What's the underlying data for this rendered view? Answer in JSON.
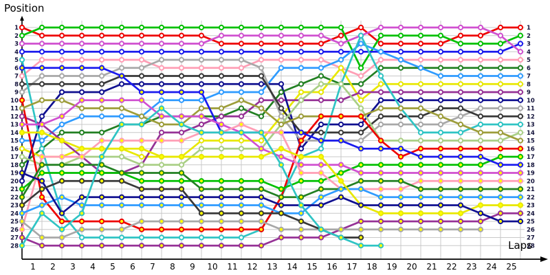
{
  "page": {
    "title": "Position",
    "xlabel": "Laps"
  },
  "chart_data": {
    "type": "line",
    "subtype": "race-lap-position-bump-chart",
    "title": "Position",
    "xlabel": "Laps",
    "grid": true,
    "x_start_lap": 0,
    "lap_ticks": [
      1,
      2,
      3,
      4,
      5,
      6,
      7,
      8,
      9,
      10,
      11,
      12,
      13,
      14,
      15,
      16,
      17,
      18,
      19,
      20,
      21,
      22,
      23,
      24,
      25
    ],
    "position_ticks": [
      1,
      2,
      3,
      4,
      5,
      6,
      7,
      8,
      9,
      10,
      11,
      12,
      13,
      14,
      15,
      16,
      17,
      18,
      19,
      20,
      21,
      22,
      23,
      24,
      25,
      26,
      27,
      28
    ],
    "ylim": [
      1,
      28
    ],
    "marker_fills": {
      "white": "#ffffff",
      "yellow": "#ffff00"
    },
    "grid_color": "#c8c8c8",
    "axis_color": "#000000",
    "label_color": "#14143c",
    "series": [
      {
        "name": "car-red-white",
        "color": "#ee0000",
        "marker": "white",
        "values": [
          1,
          2,
          2,
          2,
          2,
          2,
          2,
          2,
          2,
          2,
          3,
          3,
          3,
          3,
          3,
          3,
          2,
          1,
          3,
          3,
          3,
          3,
          2,
          2,
          1,
          1
        ]
      },
      {
        "name": "car-green-white",
        "color": "#00c000",
        "marker": "white",
        "values": [
          2,
          1,
          1,
          1,
          1,
          1,
          1,
          1,
          1,
          1,
          1,
          1,
          1,
          1,
          1,
          1,
          1,
          6,
          2,
          2,
          2,
          2,
          3,
          3,
          3,
          2
        ]
      },
      {
        "name": "car-blue-white",
        "color": "#1a1aee",
        "marker": "white",
        "values": [
          4,
          4,
          4,
          4,
          4,
          4,
          4,
          4,
          4,
          4,
          4,
          4,
          4,
          4,
          4,
          4,
          4,
          4,
          4,
          4,
          4,
          4,
          4,
          4,
          4,
          3
        ]
      },
      {
        "name": "car-violet-white",
        "color": "#d050d0",
        "marker": "white",
        "values": [
          3,
          3,
          3,
          3,
          3,
          3,
          3,
          3,
          3,
          3,
          2,
          2,
          2,
          2,
          2,
          2,
          3,
          2,
          1,
          1,
          1,
          1,
          1,
          1,
          2,
          4
        ]
      },
      {
        "name": "car-pink-white",
        "color": "#ff9eb5",
        "marker": "white",
        "values": [
          7,
          5,
          5,
          5,
          5,
          5,
          5,
          6,
          6,
          6,
          6,
          6,
          5,
          5,
          5,
          5,
          6,
          7,
          5,
          5,
          5,
          5,
          5,
          5,
          5,
          5
        ]
      },
      {
        "name": "car-darkgreen-white",
        "color": "#228022",
        "marker": "white",
        "values": [
          18,
          16,
          14,
          14,
          14,
          13,
          13,
          12,
          12,
          12,
          12,
          11,
          12,
          9,
          8,
          7,
          8,
          8,
          6,
          6,
          6,
          6,
          6,
          6,
          6,
          6
        ]
      },
      {
        "name": "car-lightblue-white",
        "color": "#2f9bff",
        "marker": "white",
        "values": [
          15,
          15,
          13,
          12,
          12,
          12,
          12,
          10,
          10,
          10,
          9,
          9,
          9,
          6,
          6,
          6,
          5,
          3,
          4,
          5,
          6,
          7,
          7,
          7,
          7,
          7
        ]
      },
      {
        "name": "car-yellow-white",
        "color": "#e8e800",
        "marker": "white",
        "values": [
          16,
          17,
          17,
          16,
          16,
          16,
          17,
          17,
          17,
          15,
          15,
          15,
          15,
          12,
          9,
          9,
          6,
          10,
          8,
          8,
          8,
          8,
          8,
          8,
          8,
          8
        ]
      },
      {
        "name": "car-purple-white",
        "color": "#963296",
        "marker": "white",
        "values": [
          12,
          13,
          15,
          17,
          19,
          19,
          18,
          14,
          14,
          13,
          12,
          12,
          10,
          10,
          10,
          10,
          10,
          9,
          9,
          9,
          9,
          9,
          9,
          9,
          9,
          9
        ]
      },
      {
        "name": "car-navy-white",
        "color": "#101090",
        "marker": "white",
        "values": [
          20,
          12,
          9,
          9,
          9,
          8,
          8,
          8,
          8,
          8,
          8,
          8,
          8,
          8,
          16,
          13,
          13,
          13,
          10,
          10,
          10,
          10,
          10,
          10,
          10,
          10
        ]
      },
      {
        "name": "car-gray-white",
        "color": "#a8a8a8",
        "marker": "white",
        "values": [
          9,
          7,
          7,
          7,
          7,
          6,
          6,
          5,
          5,
          5,
          5,
          5,
          6,
          12,
          15,
          15,
          15,
          15,
          13,
          13,
          13,
          13,
          12,
          11,
          11,
          11
        ]
      },
      {
        "name": "car-black-white",
        "color": "#383838",
        "marker": "white",
        "values": [
          8,
          8,
          8,
          8,
          8,
          7,
          7,
          7,
          7,
          7,
          7,
          7,
          7,
          11,
          14,
          14,
          14,
          14,
          12,
          12,
          12,
          11,
          11,
          12,
          12,
          12
        ]
      },
      {
        "name": "car-cyan-white",
        "color": "#2fc4c4",
        "marker": "white",
        "values": [
          5,
          16,
          24,
          27,
          27,
          27,
          27,
          27,
          27,
          27,
          27,
          27,
          26,
          22,
          17,
          16,
          8,
          2,
          7,
          11,
          14,
          14,
          14,
          13,
          13,
          13
        ]
      },
      {
        "name": "car-palegreen-white",
        "color": "#a9cf85",
        "marker": "white",
        "values": [
          17,
          18,
          18,
          17,
          17,
          17,
          18,
          18,
          18,
          16,
          16,
          16,
          16,
          13,
          10,
          8,
          8,
          11,
          15,
          15,
          15,
          15,
          15,
          15,
          15,
          14
        ]
      },
      {
        "name": "car-olive-white",
        "color": "#9d9d3a",
        "marker": "white",
        "values": [
          11,
          10,
          10,
          11,
          11,
          11,
          12,
          13,
          13,
          11,
          11,
          10,
          11,
          13,
          12,
          12,
          12,
          12,
          11,
          11,
          11,
          12,
          13,
          14,
          14,
          15
        ]
      },
      {
        "name": "car-red-yellow",
        "color": "#ee0000",
        "marker": "yellow",
        "values": [
          10,
          22,
          25,
          25,
          25,
          25,
          26,
          26,
          26,
          26,
          26,
          26,
          26,
          22,
          15,
          12,
          12,
          12,
          15,
          17,
          16,
          16,
          16,
          16,
          16,
          16
        ]
      },
      {
        "name": "car-green-yellow",
        "color": "#00c000",
        "marker": "yellow",
        "values": [
          21,
          19,
          19,
          19,
          19,
          19,
          20,
          20,
          20,
          20,
          20,
          20,
          20,
          21,
          20,
          20,
          19,
          18,
          18,
          18,
          18,
          18,
          18,
          18,
          17,
          17
        ]
      },
      {
        "name": "car-blue-yellow",
        "color": "#1a1aee",
        "marker": "yellow",
        "values": [
          6,
          6,
          6,
          6,
          6,
          7,
          9,
          9,
          9,
          9,
          14,
          14,
          14,
          14,
          14,
          15,
          15,
          16,
          16,
          16,
          17,
          17,
          17,
          17,
          18,
          18
        ]
      },
      {
        "name": "car-violet-yellow",
        "color": "#d050d0",
        "marker": "yellow",
        "values": [
          13,
          13,
          12,
          10,
          10,
          10,
          10,
          12,
          12,
          12,
          13,
          14,
          16,
          17,
          18,
          18,
          18,
          19,
          19,
          19,
          19,
          19,
          19,
          19,
          19,
          19
        ]
      },
      {
        "name": "car-pink-yellow",
        "color": "#ff9eb5",
        "marker": "yellow",
        "values": [
          26,
          17,
          17,
          17,
          15,
          15,
          15,
          15,
          15,
          14,
          14,
          13,
          14,
          14,
          19,
          19,
          21,
          21,
          21,
          21,
          20,
          20,
          20,
          20,
          20,
          20
        ]
      },
      {
        "name": "car-darkgreen-yellow",
        "color": "#228022",
        "marker": "yellow",
        "values": [
          22,
          18,
          18,
          18,
          18,
          19,
          19,
          19,
          19,
          21,
          21,
          21,
          21,
          22,
          22,
          21,
          21,
          20,
          20,
          20,
          21,
          21,
          21,
          21,
          21,
          21
        ]
      },
      {
        "name": "car-lightblue-yellow",
        "color": "#2f9bff",
        "marker": "yellow",
        "values": [
          24,
          23,
          22,
          23,
          23,
          23,
          23,
          23,
          23,
          23,
          23,
          23,
          23,
          24,
          24,
          22,
          21,
          21,
          22,
          22,
          22,
          22,
          22,
          22,
          22,
          22
        ]
      },
      {
        "name": "car-yellow-yellow",
        "color": "#e8e800",
        "marker": "yellow",
        "values": [
          14,
          14,
          15,
          16,
          16,
          16,
          16,
          17,
          17,
          17,
          17,
          17,
          17,
          16,
          17,
          17,
          20,
          23,
          24,
          24,
          24,
          24,
          24,
          23,
          23,
          23
        ]
      },
      {
        "name": "car-purple-yellow",
        "color": "#963296",
        "marker": "yellow",
        "values": [
          27,
          28,
          28,
          28,
          28,
          28,
          28,
          28,
          28,
          28,
          28,
          28,
          28,
          27,
          27,
          27,
          26,
          25,
          25,
          25,
          25,
          25,
          25,
          25,
          24,
          24
        ]
      },
      {
        "name": "car-navy-yellow",
        "color": "#101090",
        "marker": "yellow",
        "values": [
          19,
          20,
          24,
          22,
          22,
          22,
          22,
          22,
          22,
          22,
          22,
          22,
          22,
          23,
          23,
          23,
          22,
          23,
          23,
          23,
          23,
          23,
          23,
          24,
          25,
          25
        ]
      },
      {
        "name": "car-gray-yellow",
        "color": "#a8a8a8",
        "marker": "yellow",
        "values": [
          25,
          27,
          27,
          26,
          26,
          26,
          25,
          25,
          25,
          25,
          25,
          25,
          25,
          26,
          26,
          26,
          26,
          26,
          26,
          26,
          26,
          26,
          26,
          26,
          null,
          null
        ]
      },
      {
        "name": "car-black-yellow",
        "color": "#383838",
        "marker": "yellow",
        "values": [
          23,
          21,
          20,
          20,
          20,
          20,
          21,
          21,
          21,
          24,
          24,
          24,
          24,
          24,
          25,
          26,
          27,
          27,
          null,
          null,
          null,
          null,
          null,
          null,
          null,
          null
        ]
      },
      {
        "name": "car-cyan-yellow",
        "color": "#2fc4c4",
        "marker": "yellow",
        "values": [
          28,
          24,
          26,
          24,
          17,
          13,
          13,
          11,
          13,
          14,
          14,
          14,
          14,
          18,
          23,
          26,
          27,
          28,
          28,
          null,
          null,
          null,
          null,
          null,
          null,
          null
        ]
      }
    ]
  },
  "layout_note": "positions 1 (top) to 28 (bottom) across laps 0 (grid) to 25"
}
